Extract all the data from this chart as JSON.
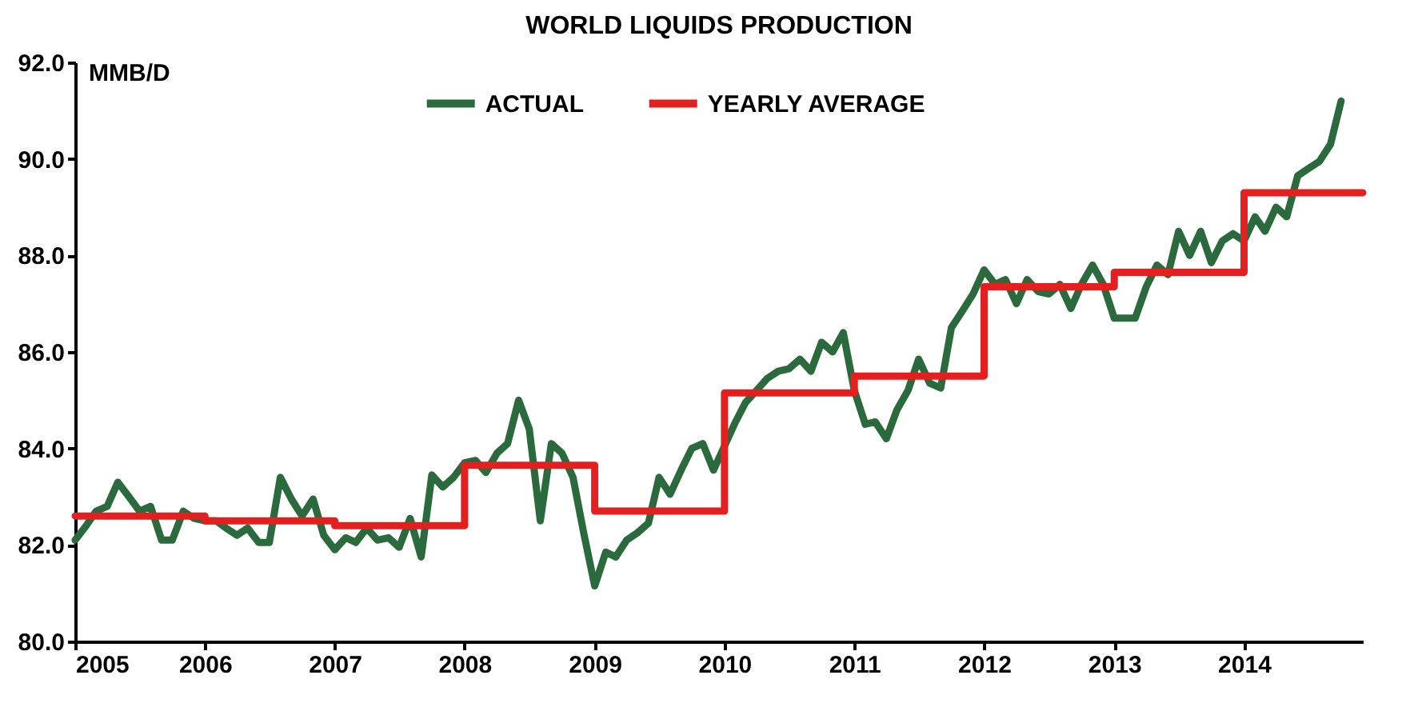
{
  "chart_data": {
    "type": "line",
    "title": "WORLD LIQUIDS PRODUCTION",
    "ylabel": "MMB/D",
    "xlim": [
      "2005-01",
      "2014-12"
    ],
    "xticks": [
      "2005",
      "2006",
      "2007",
      "2008",
      "2009",
      "2010",
      "2011",
      "2012",
      "2013",
      "2014"
    ],
    "ylim": [
      80,
      92
    ],
    "yticks": [
      {
        "value": 80,
        "label": "80.0"
      },
      {
        "value": 82,
        "label": "82.0"
      },
      {
        "value": 84,
        "label": "84.0"
      },
      {
        "value": 86,
        "label": "86.0"
      },
      {
        "value": 88,
        "label": "88.0"
      },
      {
        "value": 90,
        "label": "90.0"
      },
      {
        "value": 92,
        "label": "92.0"
      }
    ],
    "grid": false,
    "legend": "top",
    "line_style": "solid",
    "marker": "none",
    "series": [
      {
        "name": "ACTUAL",
        "color": "#2b6a3c",
        "type": "line",
        "x": [
          "2005-01",
          "2005-02",
          "2005-03",
          "2005-04",
          "2005-05",
          "2005-06",
          "2005-07",
          "2005-08",
          "2005-09",
          "2005-10",
          "2005-11",
          "2005-12",
          "2006-01",
          "2006-02",
          "2006-03",
          "2006-04",
          "2006-05",
          "2006-06",
          "2006-07",
          "2006-08",
          "2006-09",
          "2006-10",
          "2006-11",
          "2006-12",
          "2007-01",
          "2007-02",
          "2007-03",
          "2007-04",
          "2007-05",
          "2007-06",
          "2007-07",
          "2007-08",
          "2007-09",
          "2007-10",
          "2007-11",
          "2007-12",
          "2008-01",
          "2008-02",
          "2008-03",
          "2008-04",
          "2008-05",
          "2008-06",
          "2008-07",
          "2008-08",
          "2008-09",
          "2008-10",
          "2008-11",
          "2008-12",
          "2009-01",
          "2009-02",
          "2009-03",
          "2009-04",
          "2009-05",
          "2009-06",
          "2009-07",
          "2009-08",
          "2009-09",
          "2009-10",
          "2009-11",
          "2009-12",
          "2010-01",
          "2010-02",
          "2010-03",
          "2010-04",
          "2010-05",
          "2010-06",
          "2010-07",
          "2010-08",
          "2010-09",
          "2010-10",
          "2010-11",
          "2010-12",
          "2011-01",
          "2011-02",
          "2011-03",
          "2011-04",
          "2011-05",
          "2011-06",
          "2011-07",
          "2011-08",
          "2011-09",
          "2011-10",
          "2011-11",
          "2011-12",
          "2012-01",
          "2012-02",
          "2012-03",
          "2012-04",
          "2012-05",
          "2012-06",
          "2012-07",
          "2012-08",
          "2012-09",
          "2012-10",
          "2012-11",
          "2012-12",
          "2013-01",
          "2013-02",
          "2013-03",
          "2013-04",
          "2013-05",
          "2013-06",
          "2013-07",
          "2013-08",
          "2013-09",
          "2013-10",
          "2013-11",
          "2013-12",
          "2014-01",
          "2014-02",
          "2014-03",
          "2014-04",
          "2014-05",
          "2014-06",
          "2014-07",
          "2014-08",
          "2014-09",
          "2014-10"
        ],
        "values": [
          82.1,
          82.4,
          82.7,
          82.8,
          83.3,
          83.0,
          82.7,
          82.8,
          82.1,
          82.1,
          82.7,
          82.55,
          82.5,
          82.5,
          82.35,
          82.2,
          82.35,
          82.05,
          82.05,
          83.4,
          82.95,
          82.6,
          82.95,
          82.2,
          81.9,
          82.15,
          82.05,
          82.35,
          82.1,
          82.15,
          81.95,
          82.55,
          81.75,
          83.45,
          83.2,
          83.4,
          83.7,
          83.75,
          83.5,
          83.9,
          84.1,
          85.0,
          84.4,
          82.5,
          84.1,
          83.9,
          83.4,
          82.25,
          81.15,
          81.85,
          81.75,
          82.1,
          82.25,
          82.45,
          83.4,
          83.05,
          83.55,
          84.0,
          84.1,
          83.55,
          84.05,
          84.55,
          84.95,
          85.2,
          85.45,
          85.6,
          85.65,
          85.85,
          85.6,
          86.2,
          86.0,
          86.4,
          85.2,
          84.5,
          84.55,
          84.2,
          84.8,
          85.2,
          85.85,
          85.35,
          85.25,
          86.5,
          86.85,
          87.2,
          87.7,
          87.4,
          87.5,
          87.0,
          87.5,
          87.25,
          87.2,
          87.4,
          86.9,
          87.4,
          87.8,
          87.4,
          86.7,
          86.7,
          86.7,
          87.35,
          87.8,
          87.6,
          88.5,
          88.0,
          88.5,
          87.85,
          88.3,
          88.45,
          88.3,
          88.8,
          88.5,
          89.0,
          88.8,
          89.65,
          89.8,
          89.95,
          90.3,
          91.2
        ]
      },
      {
        "name": "YEARLY AVERAGE",
        "color": "#e3201f",
        "type": "step",
        "x": [
          "2005-01",
          "2006-01",
          "2007-01",
          "2008-01",
          "2009-01",
          "2010-01",
          "2011-01",
          "2012-01",
          "2013-01",
          "2014-01",
          "2014-12"
        ],
        "values": [
          82.6,
          82.5,
          82.4,
          83.65,
          82.7,
          85.15,
          85.5,
          87.35,
          87.65,
          89.3,
          89.3
        ]
      }
    ]
  }
}
